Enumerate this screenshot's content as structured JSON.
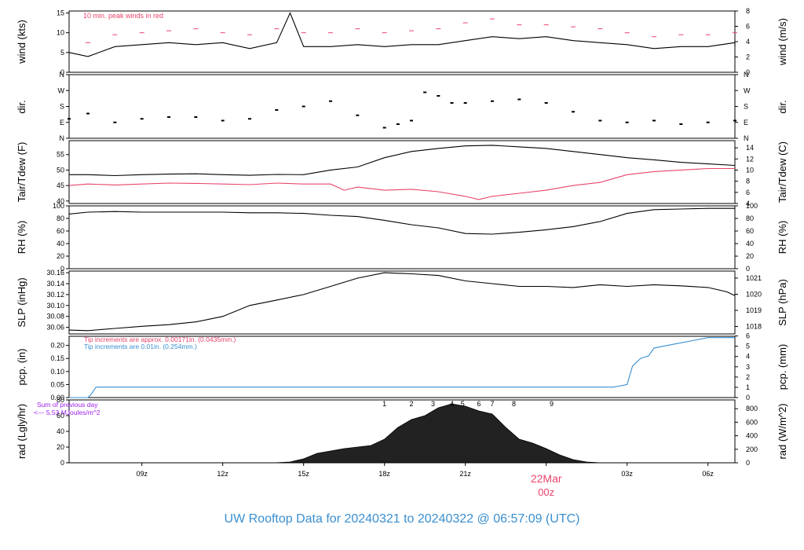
{
  "footer": {
    "title": "UW Rooftop Data for 20240321  to  20240322 @ 06:57:09  (UTC)"
  },
  "colors": {
    "red": "#e8446b",
    "blue": "#3a8fd0",
    "purple": "#a020f0",
    "black": "#000000"
  },
  "chart_data": [
    {
      "type": "line",
      "id": "wind",
      "ylabel": "wind (kts)",
      "ylabel_right": "wind (m/s)",
      "ylim": [
        0,
        15.5
      ],
      "yticks": [
        0,
        5,
        10,
        15
      ],
      "right_ticks": [
        "0",
        "2",
        "4",
        "6",
        "8"
      ],
      "right_ylim": [
        0,
        8
      ],
      "annotation": "10 min. peak winds in red",
      "series": [
        {
          "color": "#000000",
          "x": [
            6.3,
            7,
            8,
            9,
            10,
            11,
            12,
            13,
            14,
            14.5,
            15,
            16,
            17,
            18,
            19,
            20,
            21,
            22,
            23,
            24,
            25,
            26,
            27,
            28,
            29,
            30,
            31,
            31.0
          ],
          "y": [
            5,
            4,
            6.5,
            7,
            7.5,
            7,
            7.5,
            6,
            7.5,
            15,
            6.5,
            6.5,
            7,
            6.5,
            7,
            7,
            8,
            9,
            8.5,
            9,
            8,
            7.5,
            7,
            6,
            6.5,
            6.5,
            7.5,
            6.5
          ]
        },
        {
          "color": "#e8446b",
          "x": [
            7,
            8,
            9,
            10,
            11,
            12,
            13,
            14,
            15,
            16,
            17,
            18,
            19,
            20,
            21,
            22,
            23,
            24,
            25,
            26,
            27,
            28,
            29,
            30,
            31
          ],
          "y": [
            7.5,
            9.5,
            10,
            10.5,
            11,
            10,
            9.5,
            11,
            10,
            10,
            11,
            10,
            10.5,
            11,
            12.5,
            13.5,
            12,
            12,
            11.5,
            11,
            10,
            9,
            9.5,
            9.5,
            10
          ]
        }
      ]
    },
    {
      "type": "scatter",
      "id": "dir",
      "ylabel": "dir.",
      "ylabel_right": "dir.",
      "ylim": [
        0,
        360
      ],
      "ytick_values": [
        0,
        90,
        180,
        270,
        360
      ],
      "yticklabels": [
        "N",
        "E",
        "S",
        "W",
        "N"
      ],
      "series": [
        {
          "color": "#000000",
          "x": [
            6.3,
            7,
            8,
            9,
            10,
            11,
            12,
            13,
            14,
            15,
            16,
            17,
            18,
            18.5,
            19,
            19.5,
            20,
            20.5,
            21,
            22,
            23,
            24,
            25,
            26,
            27,
            28,
            29,
            30,
            31
          ],
          "y": [
            110,
            140,
            90,
            110,
            120,
            120,
            100,
            110,
            160,
            180,
            210,
            130,
            60,
            80,
            100,
            260,
            240,
            200,
            200,
            210,
            220,
            200,
            150,
            100,
            90,
            100,
            80,
            90,
            100
          ]
        }
      ]
    },
    {
      "type": "line",
      "id": "temp",
      "ylabel": "Tair/Tdew (F)",
      "ylabel_right": "Tair/Tdew (C)",
      "ylim": [
        39.2,
        59.5
      ],
      "yticks": [
        40,
        45,
        50,
        55
      ],
      "right_ticks": [
        "4",
        "6",
        "8",
        "10",
        "12",
        "14"
      ],
      "right_ylim": [
        4.0,
        15.28
      ],
      "series": [
        {
          "color": "#000000",
          "x": [
            6.3,
            7,
            8,
            9,
            10,
            11,
            12,
            13,
            14,
            15,
            16,
            17,
            18,
            19,
            20,
            21,
            22,
            23,
            24,
            25,
            26,
            27,
            28,
            29,
            30,
            31
          ],
          "y": [
            48.5,
            48.5,
            48.2,
            48.5,
            48.7,
            48.8,
            48.5,
            48.3,
            48.6,
            48.5,
            50,
            51,
            54,
            56,
            57,
            57.8,
            58,
            57.5,
            57,
            56,
            55,
            54,
            53.3,
            52.5,
            52,
            51.5
          ]
        },
        {
          "color": "#e8446b",
          "x": [
            6.3,
            7,
            8,
            9,
            10,
            11,
            12,
            13,
            14,
            15,
            16,
            16.5,
            17,
            18,
            19,
            20,
            21,
            21.5,
            22,
            23,
            24,
            25,
            26,
            27,
            28,
            29,
            30,
            31
          ],
          "y": [
            45,
            45.5,
            45.2,
            45.5,
            45.8,
            45.7,
            45.5,
            45.3,
            45.8,
            45.5,
            45.5,
            43.5,
            44.5,
            43.5,
            43.8,
            43,
            41.5,
            40.5,
            41.5,
            42.5,
            43.5,
            45,
            46,
            48.5,
            49.5,
            50,
            50.5,
            50.5
          ]
        }
      ]
    },
    {
      "type": "line",
      "id": "rh",
      "ylabel": "RH (%)",
      "ylabel_right": "RH (%)",
      "ylim": [
        0,
        100
      ],
      "yticks": [
        0,
        20,
        40,
        60,
        80,
        100
      ],
      "right_ticks": [
        "0",
        "20",
        "40",
        "60",
        "80",
        "100"
      ],
      "right_ylim": [
        0,
        100
      ],
      "series": [
        {
          "color": "#000000",
          "x": [
            6.3,
            7,
            8,
            9,
            10,
            11,
            12,
            13,
            14,
            15,
            16,
            17,
            18,
            19,
            20,
            21,
            22,
            23,
            24,
            25,
            26,
            27,
            28,
            29,
            30,
            31
          ],
          "y": [
            87,
            90,
            91,
            90,
            90,
            90,
            90,
            89,
            89,
            88,
            85,
            83,
            77,
            70,
            65,
            56,
            55,
            58,
            62,
            67,
            75,
            88,
            94,
            95,
            96,
            96
          ]
        }
      ]
    },
    {
      "type": "line",
      "id": "slp",
      "ylabel": "SLP (inHg)",
      "ylabel_right": "SLP (hPa)",
      "ylim": [
        30.048,
        30.163
      ],
      "yticks": [
        30.06,
        30.08,
        30.1,
        30.12,
        30.14,
        30.16
      ],
      "yticklabels": [
        "30.06",
        "30.08",
        "30.10",
        "30.12",
        "30.14",
        "30.16"
      ],
      "right_ticks": [
        "1018",
        "1019",
        "1020",
        "1021"
      ],
      "right_tick_values": [
        30.0616,
        30.0911,
        30.1206,
        30.1502
      ],
      "series": [
        {
          "color": "#000000",
          "x": [
            6.3,
            7,
            8,
            9,
            10,
            11,
            12,
            13,
            14,
            15,
            16,
            17,
            18,
            19,
            20,
            21,
            22,
            23,
            24,
            25,
            26,
            27,
            28,
            29,
            30,
            30.7,
            31
          ],
          "y": [
            30.055,
            30.054,
            30.058,
            30.062,
            30.065,
            30.07,
            30.08,
            30.1,
            30.11,
            30.12,
            30.135,
            30.15,
            30.16,
            30.158,
            30.155,
            30.145,
            30.14,
            30.135,
            30.135,
            30.133,
            30.138,
            30.135,
            30.138,
            30.136,
            30.133,
            30.125,
            30.118
          ]
        }
      ]
    },
    {
      "type": "line",
      "id": "pcp",
      "ylabel": "pcp. (in)",
      "ylabel_right": "pcp. (mm)",
      "ylim": [
        0,
        0.235
      ],
      "yticks": [
        0,
        0.05,
        0.1,
        0.15,
        0.2
      ],
      "yticklabels": [
        "0.00",
        "0.05",
        "0.10",
        "0.15",
        "0.20"
      ],
      "right_ticks": [
        "0",
        "1",
        "2",
        "3",
        "4",
        "5",
        "6"
      ],
      "right_ylim": [
        0,
        5.97
      ],
      "annotations": [
        "Tip increments are approx. 0.00171in. (0.0435mm.)",
        "Tip increments are 0.01in. (0.254mm.)"
      ],
      "series": [
        {
          "color": "#3a8fd0",
          "x": [
            6.3,
            7.0,
            7.1,
            7.3,
            26.5,
            27.0,
            27.2,
            27.5,
            27.8,
            28.0,
            28.5,
            29.0,
            29.5,
            30.0,
            31.0
          ],
          "y": [
            0,
            0,
            0.01,
            0.04,
            0.04,
            0.05,
            0.12,
            0.15,
            0.16,
            0.19,
            0.2,
            0.21,
            0.22,
            0.23,
            0.23
          ]
        }
      ]
    },
    {
      "type": "area",
      "id": "rad",
      "ylabel": "rad (Lgly/hr)",
      "ylabel_right": "rad (W/m^2)",
      "ylim": [
        0,
        80
      ],
      "yticks": [
        0,
        20,
        40,
        60,
        80
      ],
      "right_ticks": [
        "0",
        "200",
        "400",
        "600",
        "800"
      ],
      "right_ylim": [
        0,
        930
      ],
      "annotations": [
        "Sum of previous day",
        "<--- 5.53 MJoules/m^2"
      ],
      "marker_labels": [
        "1",
        "2",
        "3",
        "4",
        "5",
        "6",
        "7",
        "8",
        "9"
      ],
      "marker_x": [
        18.0,
        19.0,
        19.8,
        20.5,
        20.9,
        21.5,
        22.0,
        22.8,
        24.2
      ],
      "series": [
        {
          "color": "#000000",
          "x": [
            13.9,
            14.5,
            15,
            15.5,
            16,
            16.5,
            17,
            17.5,
            18,
            18.5,
            19,
            19.5,
            20,
            20.5,
            21,
            21.5,
            22,
            22.5,
            23,
            23.5,
            24,
            24.5,
            25,
            25.5,
            26
          ],
          "y": [
            0,
            1,
            5,
            12,
            15,
            18,
            20,
            22,
            30,
            45,
            55,
            60,
            70,
            75,
            72,
            66,
            62,
            45,
            30,
            25,
            18,
            10,
            4,
            1,
            0
          ]
        }
      ]
    },
    {
      "type": "axis",
      "id": "time",
      "xlim": [
        6.3,
        31.0
      ],
      "tick_values": [
        9,
        12,
        15,
        18,
        21,
        24,
        27,
        30
      ],
      "tick_labels": [
        "09z",
        "12z",
        "15z",
        "18z",
        "21z",
        "",
        "03z",
        "06z"
      ],
      "date_label": "22Mar",
      "date_sub": "00z",
      "date_label_x": 24
    }
  ]
}
